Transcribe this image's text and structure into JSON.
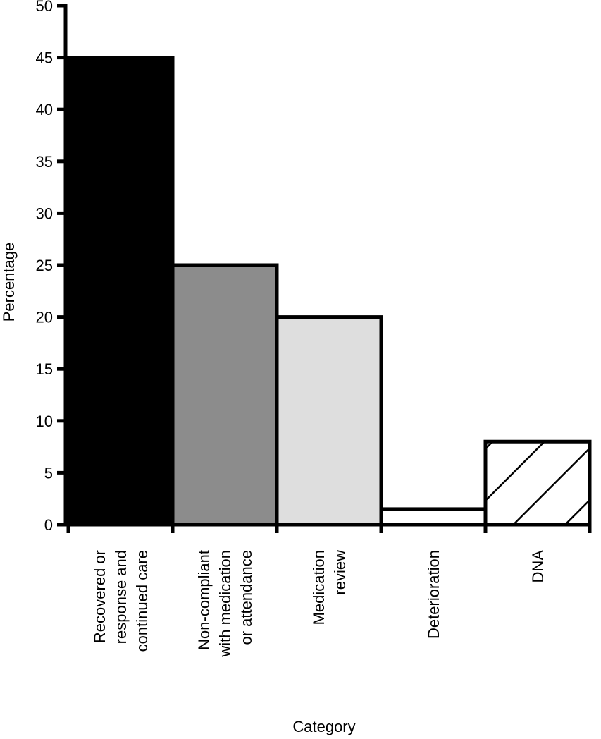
{
  "chart_data": {
    "type": "bar",
    "title": "",
    "xlabel": "Category",
    "ylabel": "Percentage",
    "ylim": [
      0,
      50
    ],
    "yticks": [
      0,
      5,
      10,
      15,
      20,
      25,
      30,
      35,
      40,
      45,
      50
    ],
    "grid": false,
    "legend": "none",
    "categories": [
      [
        "Recovered or",
        "response and",
        "continued care"
      ],
      [
        "Non-compliant",
        "with medication",
        "or attendance"
      ],
      [
        "Medication",
        "review"
      ],
      [
        "Deterioration"
      ],
      [
        "DNA"
      ]
    ],
    "values": [
      45,
      25,
      20,
      1.5,
      8
    ],
    "fills": [
      "#000000",
      "#8c8c8c",
      "#dedede",
      "#ffffff",
      "hatch"
    ]
  }
}
